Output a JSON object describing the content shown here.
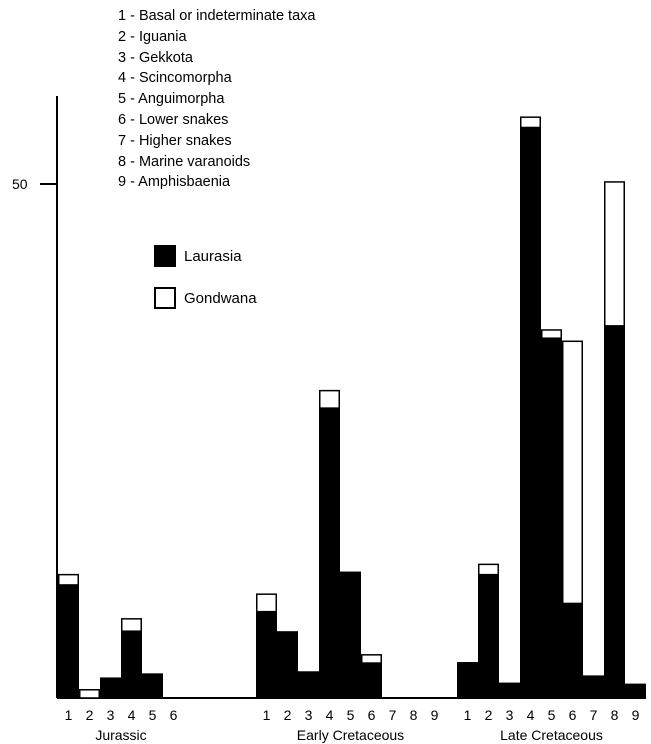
{
  "chart_data": {
    "type": "bar",
    "stacked": true,
    "ylim": [
      0,
      60
    ],
    "yticks": [
      50
    ],
    "ytick_labels": [
      "50"
    ],
    "annotations": [
      "1 - Basal or indeterminate taxa",
      "2 - Iguania",
      "3 - Gekkota",
      "4 - Scincomorpha",
      "5 - Anguimorpha",
      "6 - Lower snakes",
      "7 - Higher snakes",
      "8 - Marine varanoids",
      "9 - Amphisbaenia"
    ],
    "series": [
      {
        "name": "Laurasia",
        "color": "#000000"
      },
      {
        "name": "Gondwana",
        "color": "#ffffff"
      }
    ],
    "groups": [
      {
        "label": "Jurassic",
        "categories": [
          "1",
          "2",
          "3",
          "4",
          "5",
          "6"
        ],
        "laurasia": [
          11,
          0,
          2,
          6.5,
          2.4,
          0
        ],
        "gondwana": [
          1,
          0.8,
          0,
          1.2,
          0,
          0
        ]
      },
      {
        "label": "Early Cretaceous",
        "categories": [
          "1",
          "2",
          "3",
          "4",
          "5",
          "6",
          "7",
          "8",
          "9"
        ],
        "laurasia": [
          8.4,
          6.5,
          2.6,
          28.2,
          12.3,
          3.4,
          0,
          0,
          0
        ],
        "gondwana": [
          1.7,
          0,
          0,
          1.7,
          0,
          0.8,
          0,
          0,
          0
        ]
      },
      {
        "label": "Late Cretaceous",
        "categories": [
          "1",
          "2",
          "3",
          "4",
          "5",
          "6",
          "7",
          "8",
          "9"
        ],
        "laurasia": [
          3.5,
          12,
          1.5,
          55.5,
          35,
          9.2,
          2.2,
          36.2,
          1.4
        ],
        "gondwana": [
          0,
          1,
          0,
          1,
          0.8,
          25.5,
          0,
          14,
          0
        ]
      }
    ]
  }
}
